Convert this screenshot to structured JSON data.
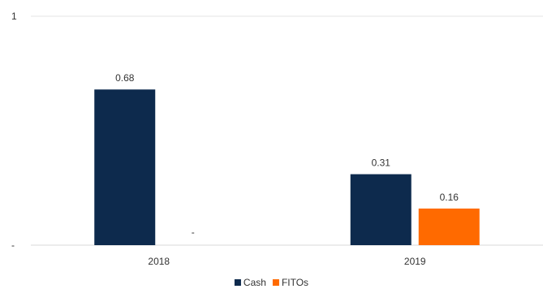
{
  "chart_data": {
    "type": "bar",
    "categories": [
      "2018",
      "2019"
    ],
    "series": [
      {
        "name": "Cash",
        "values": [
          0.68,
          0.31
        ],
        "labels": [
          "0.68",
          "0.31"
        ],
        "color": "#0d2a4d"
      },
      {
        "name": "FITOs",
        "values": [
          0,
          0.16
        ],
        "labels": [
          "-",
          "0.16"
        ],
        "color": "#ff6a00"
      }
    ],
    "ylim": [
      0,
      1
    ],
    "y_tick_labels": [
      "-",
      "1"
    ],
    "grid": true,
    "legend_position": "bottom"
  }
}
